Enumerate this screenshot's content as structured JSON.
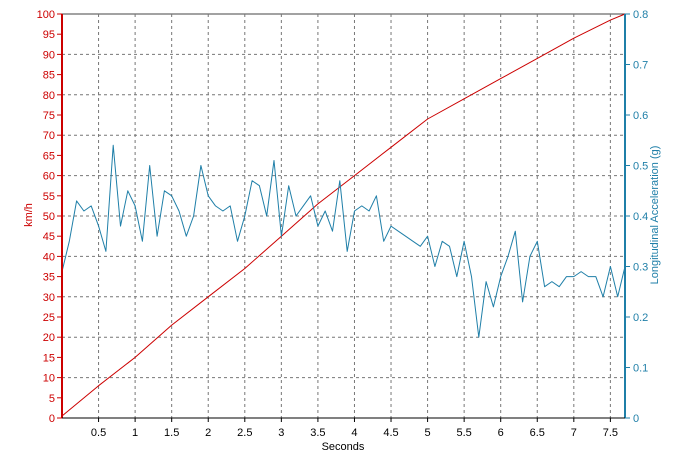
{
  "chart_data": {
    "type": "line",
    "xlabel": "Seconds",
    "xlim": [
      0,
      7.7
    ],
    "xticks": [
      0.5,
      1,
      1.5,
      2,
      2.5,
      3,
      3.5,
      4,
      4.5,
      5,
      5.5,
      6,
      6.5,
      7,
      7.5
    ],
    "xtick_labels": [
      "0.5",
      "1",
      "1.5",
      "2",
      "2.5",
      "3",
      "3.5",
      "4",
      "4.5",
      "5",
      "5.5",
      "6",
      "6.5",
      "7",
      "7.5"
    ],
    "y_left": {
      "label": "km/h",
      "range": [
        0,
        100
      ],
      "ticks": [
        0,
        5,
        10,
        15,
        20,
        25,
        30,
        35,
        40,
        45,
        50,
        55,
        60,
        65,
        70,
        75,
        80,
        85,
        90,
        95,
        100
      ],
      "tick_labels": [
        "0",
        "5",
        "10",
        "15",
        "20",
        "25",
        "30",
        "35",
        "40",
        "45",
        "50",
        "55",
        "60",
        "65",
        "70",
        "75",
        "80",
        "85",
        "90",
        "95",
        "100"
      ],
      "color": "#cc0000"
    },
    "y_right": {
      "label": "Longitudinal Acceleration (g)",
      "range": [
        0,
        0.8
      ],
      "ticks": [
        0,
        0.1,
        0.2,
        0.3,
        0.4,
        0.5,
        0.6,
        0.7,
        0.8
      ],
      "tick_labels": [
        "0",
        "0.1",
        "0.2",
        "0.3",
        "0.4",
        "0.5",
        "0.6",
        "0.7",
        "0.8"
      ],
      "color": "#1f7fa8"
    },
    "grid": true,
    "series": [
      {
        "axis": "left",
        "color": "#cc0000",
        "x": [
          0,
          0.5,
          1,
          1.5,
          2,
          2.5,
          3,
          3.5,
          4,
          4.5,
          5,
          5.5,
          6,
          6.5,
          7,
          7.5,
          7.7
        ],
        "y": [
          0.5,
          8,
          15,
          23,
          30,
          37,
          45,
          53,
          60,
          67,
          74,
          79,
          84,
          89,
          94,
          98.5,
          100
        ]
      },
      {
        "axis": "right",
        "color": "#1f7fa8",
        "x": [
          0,
          0.1,
          0.2,
          0.3,
          0.4,
          0.5,
          0.6,
          0.7,
          0.8,
          0.9,
          1.0,
          1.1,
          1.2,
          1.3,
          1.4,
          1.5,
          1.6,
          1.7,
          1.8,
          1.9,
          2.0,
          2.1,
          2.2,
          2.3,
          2.4,
          2.5,
          2.6,
          2.7,
          2.8,
          2.9,
          3.0,
          3.1,
          3.2,
          3.3,
          3.4,
          3.5,
          3.6,
          3.7,
          3.8,
          3.9,
          4.0,
          4.1,
          4.2,
          4.3,
          4.4,
          4.5,
          4.6,
          4.7,
          4.8,
          4.9,
          5.0,
          5.1,
          5.2,
          5.3,
          5.4,
          5.5,
          5.6,
          5.7,
          5.8,
          5.9,
          6.0,
          6.1,
          6.2,
          6.3,
          6.4,
          6.5,
          6.6,
          6.7,
          6.8,
          6.9,
          7.0,
          7.1,
          7.2,
          7.3,
          7.4,
          7.5,
          7.6,
          7.7
        ],
        "y": [
          0.29,
          0.35,
          0.43,
          0.41,
          0.42,
          0.38,
          0.33,
          0.54,
          0.38,
          0.45,
          0.42,
          0.35,
          0.5,
          0.36,
          0.45,
          0.44,
          0.41,
          0.36,
          0.4,
          0.5,
          0.44,
          0.42,
          0.41,
          0.42,
          0.35,
          0.4,
          0.47,
          0.46,
          0.4,
          0.51,
          0.36,
          0.46,
          0.4,
          0.42,
          0.44,
          0.38,
          0.41,
          0.37,
          0.47,
          0.33,
          0.41,
          0.42,
          0.41,
          0.44,
          0.35,
          0.38,
          0.37,
          0.36,
          0.35,
          0.34,
          0.36,
          0.3,
          0.35,
          0.34,
          0.28,
          0.35,
          0.28,
          0.16,
          0.27,
          0.22,
          0.28,
          0.32,
          0.37,
          0.23,
          0.32,
          0.35,
          0.26,
          0.27,
          0.26,
          0.28,
          0.28,
          0.29,
          0.28,
          0.28,
          0.24,
          0.3,
          0.24,
          0.3
        ]
      }
    ]
  }
}
